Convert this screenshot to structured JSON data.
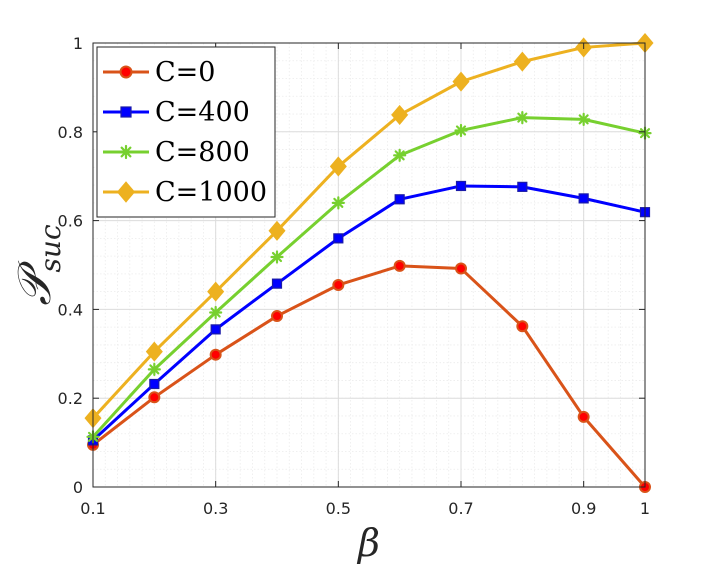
{
  "chart_data": {
    "type": "line",
    "xlabel": "β",
    "ylabel": "𝒫",
    "ylabel_sub": "suc",
    "xlim": [
      0.1,
      1
    ],
    "ylim": [
      0,
      1
    ],
    "xticks": [
      0.1,
      0.3,
      0.5,
      0.7,
      0.9,
      1
    ],
    "xtick_labels": [
      "0.1",
      "0.3",
      "0.5",
      "0.7",
      "0.9",
      "1"
    ],
    "yticks": [
      0,
      0.2,
      0.4,
      0.6,
      0.8,
      1
    ],
    "ytick_labels": [
      "0",
      "0.2",
      "0.4",
      "0.6",
      "0.8",
      "1"
    ],
    "grid": true,
    "legend_position": "top-left",
    "x": [
      0.1,
      0.2,
      0.3,
      0.4,
      0.5,
      0.6,
      0.7,
      0.8,
      0.9,
      1.0
    ],
    "series": [
      {
        "name": "C=0",
        "color": "#D95319",
        "marker": "circle",
        "marker_fill": "#FF0000",
        "values": [
          0.095,
          0.202,
          0.298,
          0.385,
          0.455,
          0.498,
          0.492,
          0.362,
          0.158,
          0.0
        ]
      },
      {
        "name": "C=400",
        "color": "#0000FF",
        "marker": "square",
        "marker_fill": "#0000FF",
        "values": [
          0.105,
          0.232,
          0.355,
          0.458,
          0.56,
          0.648,
          0.678,
          0.676,
          0.65,
          0.619
        ]
      },
      {
        "name": "C=800",
        "color": "#77D02F",
        "marker": "asterisk",
        "marker_fill": "#77D02F",
        "values": [
          0.113,
          0.265,
          0.393,
          0.518,
          0.64,
          0.747,
          0.803,
          0.832,
          0.828,
          0.797
        ]
      },
      {
        "name": "C=1000",
        "color": "#EDB120",
        "marker": "diamond",
        "marker_fill": "#EDB120",
        "values": [
          0.155,
          0.305,
          0.44,
          0.577,
          0.722,
          0.838,
          0.913,
          0.958,
          0.99,
          1.0
        ]
      }
    ]
  }
}
